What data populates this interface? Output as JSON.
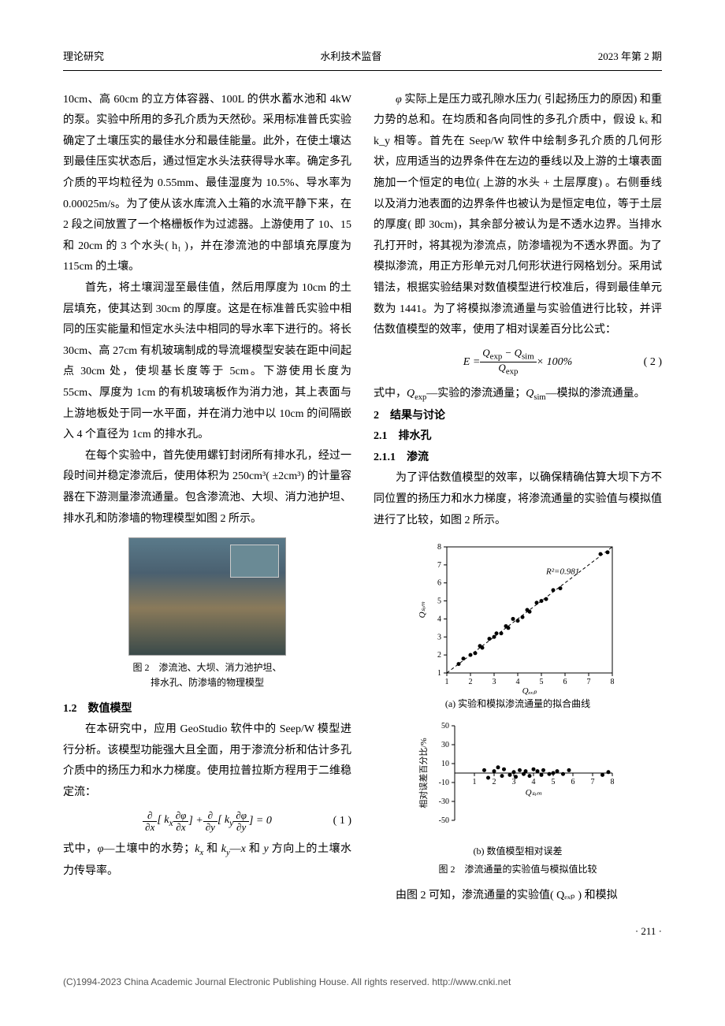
{
  "header": {
    "left": "理论研究",
    "center": "水利技术监督",
    "right": "2023 年第 2 期"
  },
  "leftcol": {
    "p1": "10cm、高 60cm 的立方体容器、100L 的供水蓄水池和 4kW 的泵。实验中所用的多孔介质为天然砂。采用标准普氏实验确定了土壤压实的最佳水分和最佳能量。此外，在使土壤达到最佳压实状态后，通过恒定水头法获得导水率。确定多孔介质的平均粒径为 0.55mm、最佳湿度为 10.5%、导水率为 0.00025m/s。为了使从该水库流入土箱的水流平静下来，在 2 段之间放置了一个格栅板作为过滤器。上游使用了 10、15 和 20cm 的 3 个水头( h₁ )，并在渗流池的中部填充厚度为 115cm 的土壤。",
    "p2": "首先，将土壤润湿至最佳值，然后用厚度为 10cm 的土层填充，使其达到 30cm 的厚度。这是在标准普氏实验中相同的压实能量和恒定水头法中相同的导水率下进行的。将长 30cm、高 27cm 有机玻璃制成的导流堰模型安装在距中间起点 30cm 处，使坝基长度等于 5cm。下游使用长度为 55cm、厚度为 1cm 的有机玻璃板作为消力池，其上表面与上游地板处于同一水平面，并在消力池中以 10cm 的间隔嵌入 4 个直径为 1cm 的排水孔。",
    "p3": "在每个实验中，首先使用螺钉封闭所有排水孔，经过一段时间并稳定渗流后，使用体积为 250cm³( ±2cm³) 的计量容器在下游测量渗流通量。包含渗流池、大坝、消力池护坦、排水孔和防渗墙的物理模型如图 2 所示。",
    "fig2a_caption_l1": "图 2　渗流池、大坝、消力池护坦、",
    "fig2a_caption_l2": "排水孔、防渗墙的物理模型",
    "sec12": "1.2　数值模型",
    "p4": "在本研究中，应用 GeoStudio 软件中的 Seep/W 模型进行分析。该模型功能强大且全面，用于渗流分析和估计多孔介质中的扬压力和水力梯度。使用拉普拉斯方程用于二维稳定流：",
    "eq1_num": "( 1 )",
    "p5_pre": "式中，",
    "p5_phi": "φ",
    "p5_mid1": "—土壤中的水势；",
    "p5_kx": "k",
    "p5_kxs": "x",
    "p5_and": " 和 ",
    "p5_ky": "k",
    "p5_kys": "y",
    "p5_mid2": "—",
    "p5_x": "x",
    "p5_and2": " 和 ",
    "p5_y": "y",
    "p5_tail": " 方向上的土壤水力传导率。"
  },
  "rightcol": {
    "p1_pre": "",
    "p1_phi": "φ",
    "p1": " 实际上是压力或孔隙水压力( 引起扬压力的原因) 和重力势的总和。在均质和各向同性的多孔介质中，假设 kₓ 和 k_y 相等。首先在 Seep/W 软件中绘制多孔介质的几何形状，应用适当的边界条件在左边的垂线以及上游的土壤表面施加一个恒定的电位( 上游的水头 + 土层厚度) 。右侧垂线以及消力池表面的边界条件也被认为是恒定电位，等于土层的厚度( 即 30cm)，其余部分被认为是不透水边界。当排水孔打开时，将其视为渗流点，防渗墙视为不透水界面。为了模拟渗流，用正方形单元对几何形状进行网格划分。采用试错法，根据实验结果对数值模型进行校准后，得到最佳单元数为 1441。为了将模拟渗流通量与实验值进行比较，并评估数值模型的效率，使用了相对误差百分比公式：",
    "eq2_num": "( 2 )",
    "p2_pre": "式中，",
    "p2_qexp": "Q",
    "p2_qexps": "exp",
    "p2_mid1": "—实验的渗流通量；",
    "p2_qsim": "Q",
    "p2_qsims": "sim",
    "p2_tail": "—模拟的渗流通量。",
    "sec2": "2　结果与讨论",
    "sec21": "2.1　排水孔",
    "sec211": "2.1.1　渗流",
    "p3": "为了评估数值模型的效率，以确保精确估算大坝下方不同位置的扬压力和水力梯度，将渗流通量的实验值与模拟值进行了比较，如图 2 所示。",
    "chart_a": {
      "type": "scatter",
      "xlabel": "Qₑₓₚ",
      "ylabel": "Qₛᵢₘ",
      "xlim": [
        1,
        8
      ],
      "ylim": [
        1,
        8
      ],
      "xticks": [
        1,
        2,
        3,
        4,
        5,
        6,
        7,
        8
      ],
      "yticks": [
        1,
        2,
        3,
        4,
        5,
        6,
        7,
        8
      ],
      "r2_label": "R²=0.981",
      "r2_pos": [
        5.2,
        6.5
      ],
      "point_color": "#000000",
      "line_color": "#000000",
      "line_dash": "4 3",
      "background": "#ffffff",
      "points": [
        [
          1.5,
          1.5
        ],
        [
          1.7,
          1.8
        ],
        [
          2.0,
          2.0
        ],
        [
          2.2,
          2.1
        ],
        [
          2.4,
          2.5
        ],
        [
          2.5,
          2.4
        ],
        [
          2.8,
          2.9
        ],
        [
          3.0,
          3.0
        ],
        [
          3.1,
          3.2
        ],
        [
          3.3,
          3.2
        ],
        [
          3.5,
          3.6
        ],
        [
          3.6,
          3.5
        ],
        [
          3.8,
          4.0
        ],
        [
          4.0,
          3.9
        ],
        [
          4.2,
          4.1
        ],
        [
          4.4,
          4.5
        ],
        [
          4.5,
          4.4
        ],
        [
          4.8,
          4.9
        ],
        [
          5.0,
          5.0
        ],
        [
          5.2,
          5.1
        ],
        [
          5.5,
          5.6
        ],
        [
          5.8,
          5.7
        ],
        [
          7.5,
          7.6
        ],
        [
          7.8,
          7.7
        ]
      ],
      "fit_line": [
        [
          1,
          1
        ],
        [
          8,
          8
        ]
      ],
      "caption": "(a) 实验和模拟渗流通量的拟合曲线"
    },
    "chart_b": {
      "type": "scatter",
      "xlabel": "Qₛᵢₘ",
      "ylabel": "相对误差百分比/%",
      "xlim": [
        0,
        8
      ],
      "ylim": [
        -50,
        50
      ],
      "xticks": [
        1,
        2,
        3,
        4,
        5,
        6,
        7,
        8
      ],
      "yticks": [
        -50,
        -30,
        -10,
        10,
        30,
        50
      ],
      "point_color": "#000000",
      "background": "#ffffff",
      "points": [
        [
          1.5,
          3
        ],
        [
          1.7,
          -5
        ],
        [
          2.0,
          2
        ],
        [
          2.2,
          6
        ],
        [
          2.4,
          -3
        ],
        [
          2.5,
          4
        ],
        [
          2.8,
          -2
        ],
        [
          3.0,
          1
        ],
        [
          3.1,
          -4
        ],
        [
          3.3,
          3
        ],
        [
          3.5,
          -1
        ],
        [
          3.6,
          2
        ],
        [
          3.8,
          -3
        ],
        [
          4.0,
          4
        ],
        [
          4.2,
          2
        ],
        [
          4.4,
          -2
        ],
        [
          4.5,
          3
        ],
        [
          4.8,
          -1
        ],
        [
          5.0,
          0
        ],
        [
          5.2,
          2
        ],
        [
          5.5,
          -1
        ],
        [
          5.8,
          3
        ],
        [
          7.5,
          -2
        ],
        [
          7.8,
          1
        ]
      ],
      "caption": "(b) 数值模型相对误差"
    },
    "fig2_main_caption": "图 2　渗流通量的实验值与模拟值比较",
    "p4": "由图 2 可知，渗流通量的实验值( Qₑₓₚ ) 和模拟"
  },
  "page_num": "· 211 ·",
  "footer": "(C)1994-2023 China Academic Journal Electronic Publishing House. All rights reserved.    http://www.cnki.net"
}
